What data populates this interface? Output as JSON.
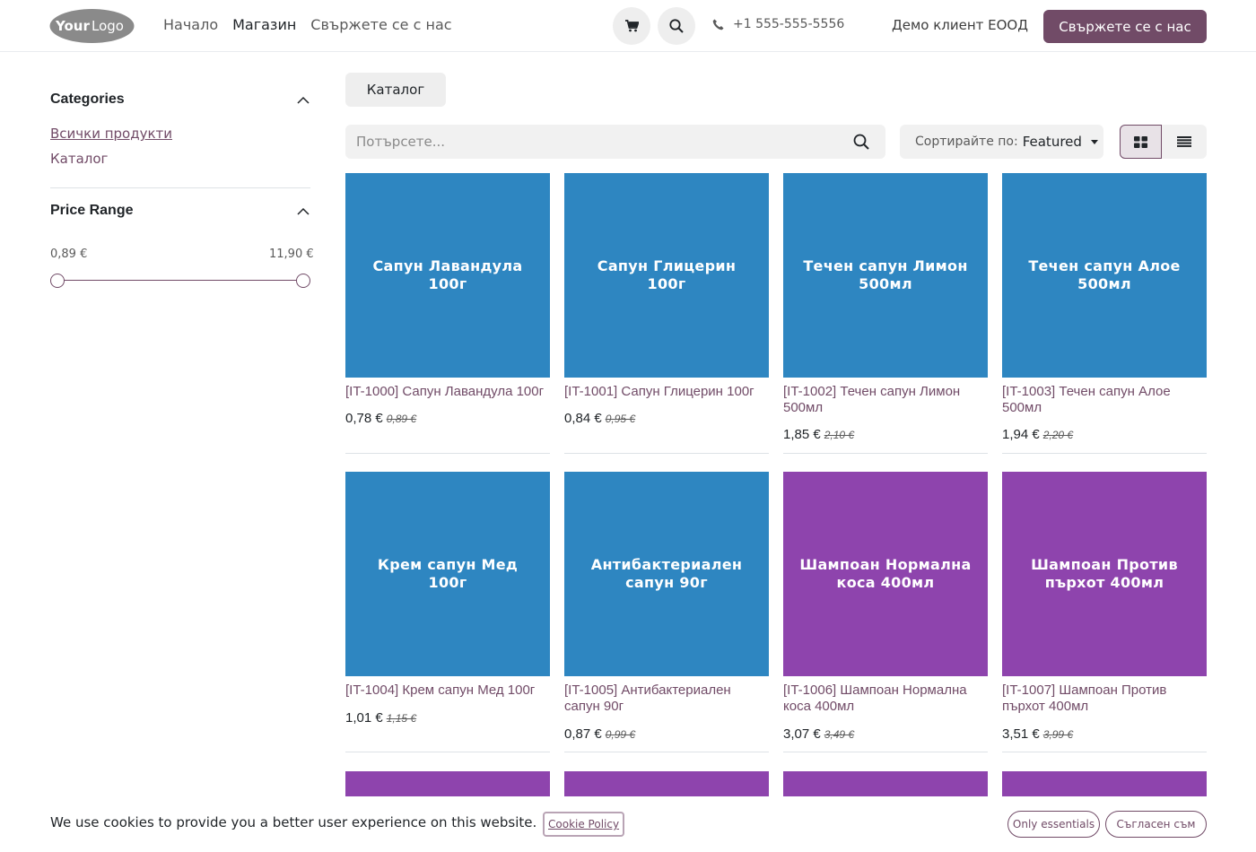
{
  "header": {
    "logo_text": "YourLogo",
    "nav": [
      "Начало",
      "Магазин",
      "Свържете се с нас"
    ],
    "active_nav": "Магазин",
    "phone": "+1 555-555-5556",
    "account": "Демо клиент ЕООД",
    "cta": "Свържете се с нас"
  },
  "sidebar": {
    "categories_title": "Categories",
    "categories": [
      "Всички продукти",
      "Каталог"
    ],
    "price_title": "Price Range",
    "price_min": "0,89 €",
    "price_max": "11,90 €"
  },
  "main": {
    "breadcrumb": "Каталог",
    "search_placeholder": "Потърсете...",
    "sort_label": "Сортирайте по:",
    "sort_value": "Featured"
  },
  "products": [
    {
      "image_text": "Сапун Лавандула 100г",
      "name": "[IT-1000] Сапун Лавандула 100г",
      "price": "0,78 €",
      "old_price": "0,89 €",
      "color": "#2E86C1"
    },
    {
      "image_text": "Сапун Глицерин 100г",
      "name": "[IT-1001] Сапун Глицерин 100г",
      "price": "0,84 €",
      "old_price": "0,95 €",
      "color": "#2E86C1"
    },
    {
      "image_text": "Течен сапун Лимон 500мл",
      "name": "[IT-1002] Течен сапун Лимон 500мл",
      "price": "1,85 €",
      "old_price": "2,10 €",
      "color": "#2E86C1"
    },
    {
      "image_text": "Течен сапун Алое 500мл",
      "name": "[IT-1003] Течен сапун Алое 500мл",
      "price": "1,94 €",
      "old_price": "2,20 €",
      "color": "#2E86C1"
    },
    {
      "image_text": "Крем сапун Мед 100г",
      "name": "[IT-1004] Крем сапун Мед 100г",
      "price": "1,01 €",
      "old_price": "1,15 €",
      "color": "#2E86C1"
    },
    {
      "image_text": "Антибактериален сапун 90г",
      "name": "[IT-1005] Антибактериален сапун 90г",
      "price": "0,87 €",
      "old_price": "0,99 €",
      "color": "#2E86C1"
    },
    {
      "image_text": "Шампоан Нормална коса 400мл",
      "name": "[IT-1006] Шампоан Нормална коса 400мл",
      "price": "3,07 €",
      "old_price": "3,49 €",
      "color": "#8E44AD"
    },
    {
      "image_text": "Шампоан Против пърхот 400мл",
      "name": "[IT-1007] Шампоан Против пърхот 400мл",
      "price": "3,51 €",
      "old_price": "3,99 €",
      "color": "#8E44AD"
    }
  ],
  "cookie": {
    "text": "We use cookies to provide you a better user experience on this website.",
    "policy": "Cookie Policy",
    "essentials": "Only essentials",
    "agree": "Съгласен съм"
  },
  "colors": {
    "brand": "#714B67",
    "soap_tile": "#2E86C1",
    "shampoo_tile": "#8E44AD"
  }
}
